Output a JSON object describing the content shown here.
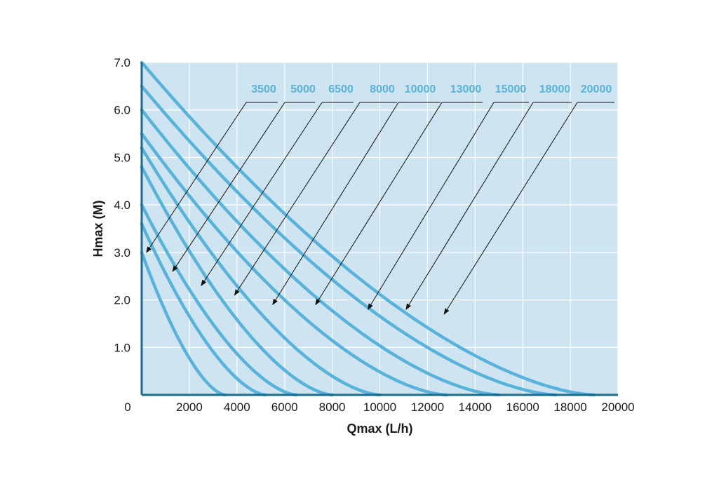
{
  "chart_data": {
    "type": "line",
    "title": "",
    "xlabel": "Qmax (L/h)",
    "ylabel": "Hmax (M)",
    "xlim": [
      0,
      20000
    ],
    "ylim": [
      0,
      7.0
    ],
    "x_ticks": [
      "0",
      "2000",
      "4000",
      "6000",
      "8000",
      "10000",
      "12000",
      "14000",
      "16000",
      "18000",
      "20000"
    ],
    "y_ticks": [
      "1.0",
      "2.0",
      "3.0",
      "4.0",
      "5.0",
      "6.0",
      "7.0"
    ],
    "grid": true,
    "colors": {
      "plot_background": "#cfe4f1",
      "grid": "#ffffff",
      "series": "#57b3dc",
      "axis": "#1a6a8a",
      "label": "#57b3dc"
    },
    "series": [
      {
        "name": "3500",
        "h0": 3.0,
        "qmax": 3500
      },
      {
        "name": "5000",
        "h0": 3.6,
        "qmax": 5200
      },
      {
        "name": "6500",
        "h0": 4.0,
        "qmax": 6500
      },
      {
        "name": "8000",
        "h0": 4.8,
        "qmax": 8000
      },
      {
        "name": "10000",
        "h0": 5.2,
        "qmax": 10000
      },
      {
        "name": "13000",
        "h0": 5.5,
        "qmax": 12800
      },
      {
        "name": "15000",
        "h0": 6.0,
        "qmax": 15000
      },
      {
        "name": "18000",
        "h0": 6.5,
        "qmax": 17400
      },
      {
        "name": "20000",
        "h0": 7.0,
        "qmax": 19000
      }
    ],
    "annotation_points": [
      {
        "series": "3500",
        "x": 200,
        "y": 3.0
      },
      {
        "series": "5000",
        "x": 1300,
        "y": 2.6
      },
      {
        "series": "6500",
        "x": 2500,
        "y": 2.3
      },
      {
        "series": "8000",
        "x": 3900,
        "y": 2.1
      },
      {
        "series": "10000",
        "x": 5500,
        "y": 1.9
      },
      {
        "series": "13000",
        "x": 7300,
        "y": 1.9
      },
      {
        "series": "15000",
        "x": 9500,
        "y": 1.8
      },
      {
        "series": "18000",
        "x": 11100,
        "y": 1.8
      },
      {
        "series": "20000",
        "x": 12700,
        "y": 1.7
      }
    ]
  }
}
